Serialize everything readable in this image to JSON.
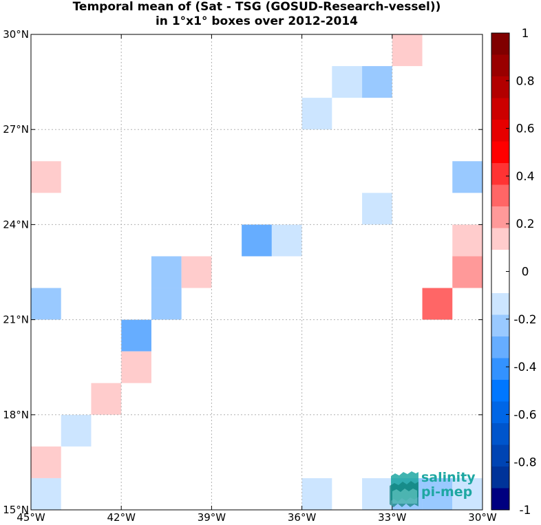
{
  "chart_data": {
    "type": "heatmap",
    "title_lines": [
      "Temporal mean of (Sat - TSG (GOSUD-Research-vessel))",
      "in 1°x1° boxes over 2012-2014"
    ],
    "x_range": [
      -45,
      -30
    ],
    "y_range": [
      15,
      30
    ],
    "x_ticks": [
      -45,
      -42,
      -39,
      -36,
      -33,
      -30
    ],
    "x_tick_labels": [
      "45°W",
      "42°W",
      "39°W",
      "36°W",
      "33°W",
      "30°W"
    ],
    "y_ticks": [
      15,
      18,
      21,
      24,
      27,
      30
    ],
    "y_tick_labels": [
      "15°N",
      "18°N",
      "21°N",
      "24°N",
      "27°N",
      "30°N"
    ],
    "grid": true,
    "cells": [
      {
        "lon": -33,
        "lat": 29,
        "value": 0.15
      },
      {
        "lon": -35,
        "lat": 28,
        "value": -0.15
      },
      {
        "lon": -34,
        "lat": 28,
        "value": -0.25
      },
      {
        "lon": -36,
        "lat": 27,
        "value": -0.15
      },
      {
        "lon": -45,
        "lat": 25,
        "value": 0.15
      },
      {
        "lon": -31,
        "lat": 25,
        "value": -0.25
      },
      {
        "lon": -34,
        "lat": 24,
        "value": -0.15
      },
      {
        "lon": -38,
        "lat": 23,
        "value": -0.35
      },
      {
        "lon": -37,
        "lat": 23,
        "value": -0.15
      },
      {
        "lon": -31,
        "lat": 23,
        "value": 0.15
      },
      {
        "lon": -41,
        "lat": 22,
        "value": -0.25
      },
      {
        "lon": -40,
        "lat": 22,
        "value": 0.15
      },
      {
        "lon": -31,
        "lat": 22,
        "value": 0.25
      },
      {
        "lon": -45,
        "lat": 21,
        "value": -0.25
      },
      {
        "lon": -41,
        "lat": 21,
        "value": -0.25
      },
      {
        "lon": -32,
        "lat": 21,
        "value": 0.3
      },
      {
        "lon": -42,
        "lat": 20,
        "value": -0.35
      },
      {
        "lon": -42,
        "lat": 19,
        "value": 0.15
      },
      {
        "lon": -43,
        "lat": 18,
        "value": 0.15
      },
      {
        "lon": -44,
        "lat": 17,
        "value": -0.15
      },
      {
        "lon": -45,
        "lat": 16,
        "value": 0.15
      },
      {
        "lon": -45,
        "lat": 15,
        "value": -0.15
      },
      {
        "lon": -36,
        "lat": 15,
        "value": -0.15
      },
      {
        "lon": -34,
        "lat": 15,
        "value": -0.15
      },
      {
        "lon": -33,
        "lat": 15,
        "value": -0.25
      },
      {
        "lon": -32,
        "lat": 15,
        "value": -0.25
      },
      {
        "lon": -31,
        "lat": 15,
        "value": -0.15
      }
    ],
    "colorbar": {
      "range": [
        -1,
        1
      ],
      "ticks": [
        1,
        0.8,
        0.6,
        0.4,
        0.2,
        0,
        -0.2,
        -0.4,
        -0.6,
        -0.8,
        -1
      ],
      "tick_labels": [
        "1",
        "0.8",
        "0.6",
        "0.4",
        "0.2",
        "0",
        "-0.2",
        "-0.4",
        "-0.6",
        "-0.8",
        "-1"
      ],
      "colors_top_to_bottom": [
        "#800000",
        "#990000",
        "#b20000",
        "#cc0000",
        "#e60000",
        "#ff0000",
        "#ff3333",
        "#ff6666",
        "#ff9999",
        "#ffcccc",
        "#ffffff",
        "#ffffff",
        "#cce5ff",
        "#99c9ff",
        "#66adff",
        "#3392ff",
        "#0077ff",
        "#0066e6",
        "#0055cc",
        "#0044b3",
        "#003399",
        "#000080"
      ]
    }
  },
  "logo": {
    "line1": "salinity",
    "line2": "pi-mep"
  }
}
